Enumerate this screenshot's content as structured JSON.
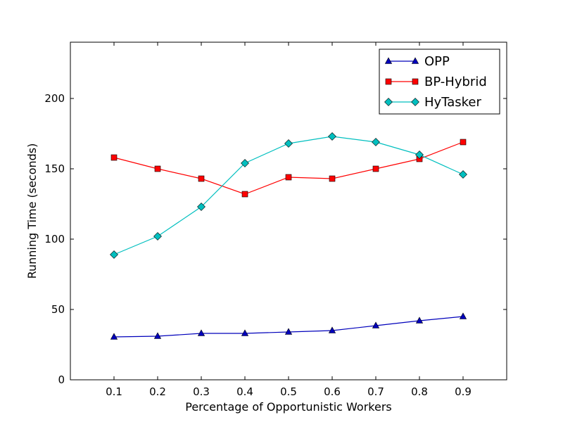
{
  "chart_data": {
    "type": "line",
    "title": "",
    "xlabel": "Percentage of Opportunistic Workers",
    "ylabel": "Running Time (seconds)",
    "xlim": [
      0,
      1.0
    ],
    "ylim": [
      0,
      240
    ],
    "x": [
      0.1,
      0.2,
      0.3,
      0.4,
      0.5,
      0.6,
      0.7,
      0.8,
      0.9
    ],
    "x_tick_labels": [
      "0.1",
      "0.2",
      "0.3",
      "0.4",
      "0.5",
      "0.6",
      "0.7",
      "0.8",
      "0.9"
    ],
    "y_ticks": [
      0,
      50,
      100,
      150,
      200
    ],
    "y_tick_labels": [
      "0",
      "50",
      "100",
      "150",
      "200"
    ],
    "grid": false,
    "legend_position": "top-right",
    "series": [
      {
        "name": "OPP",
        "color": "#0000bb",
        "marker": "triangle",
        "values": [
          30.5,
          31,
          33,
          33,
          34,
          35,
          38.5,
          42,
          45
        ]
      },
      {
        "name": "BP-Hybrid",
        "color": "#ff0000",
        "marker": "square",
        "values": [
          158,
          150,
          143,
          132,
          144,
          143,
          150,
          157,
          169
        ]
      },
      {
        "name": "HyTasker",
        "color": "#00bfbf",
        "marker": "diamond",
        "values": [
          89,
          102,
          123,
          154,
          168,
          173,
          169,
          160,
          146
        ]
      }
    ]
  }
}
